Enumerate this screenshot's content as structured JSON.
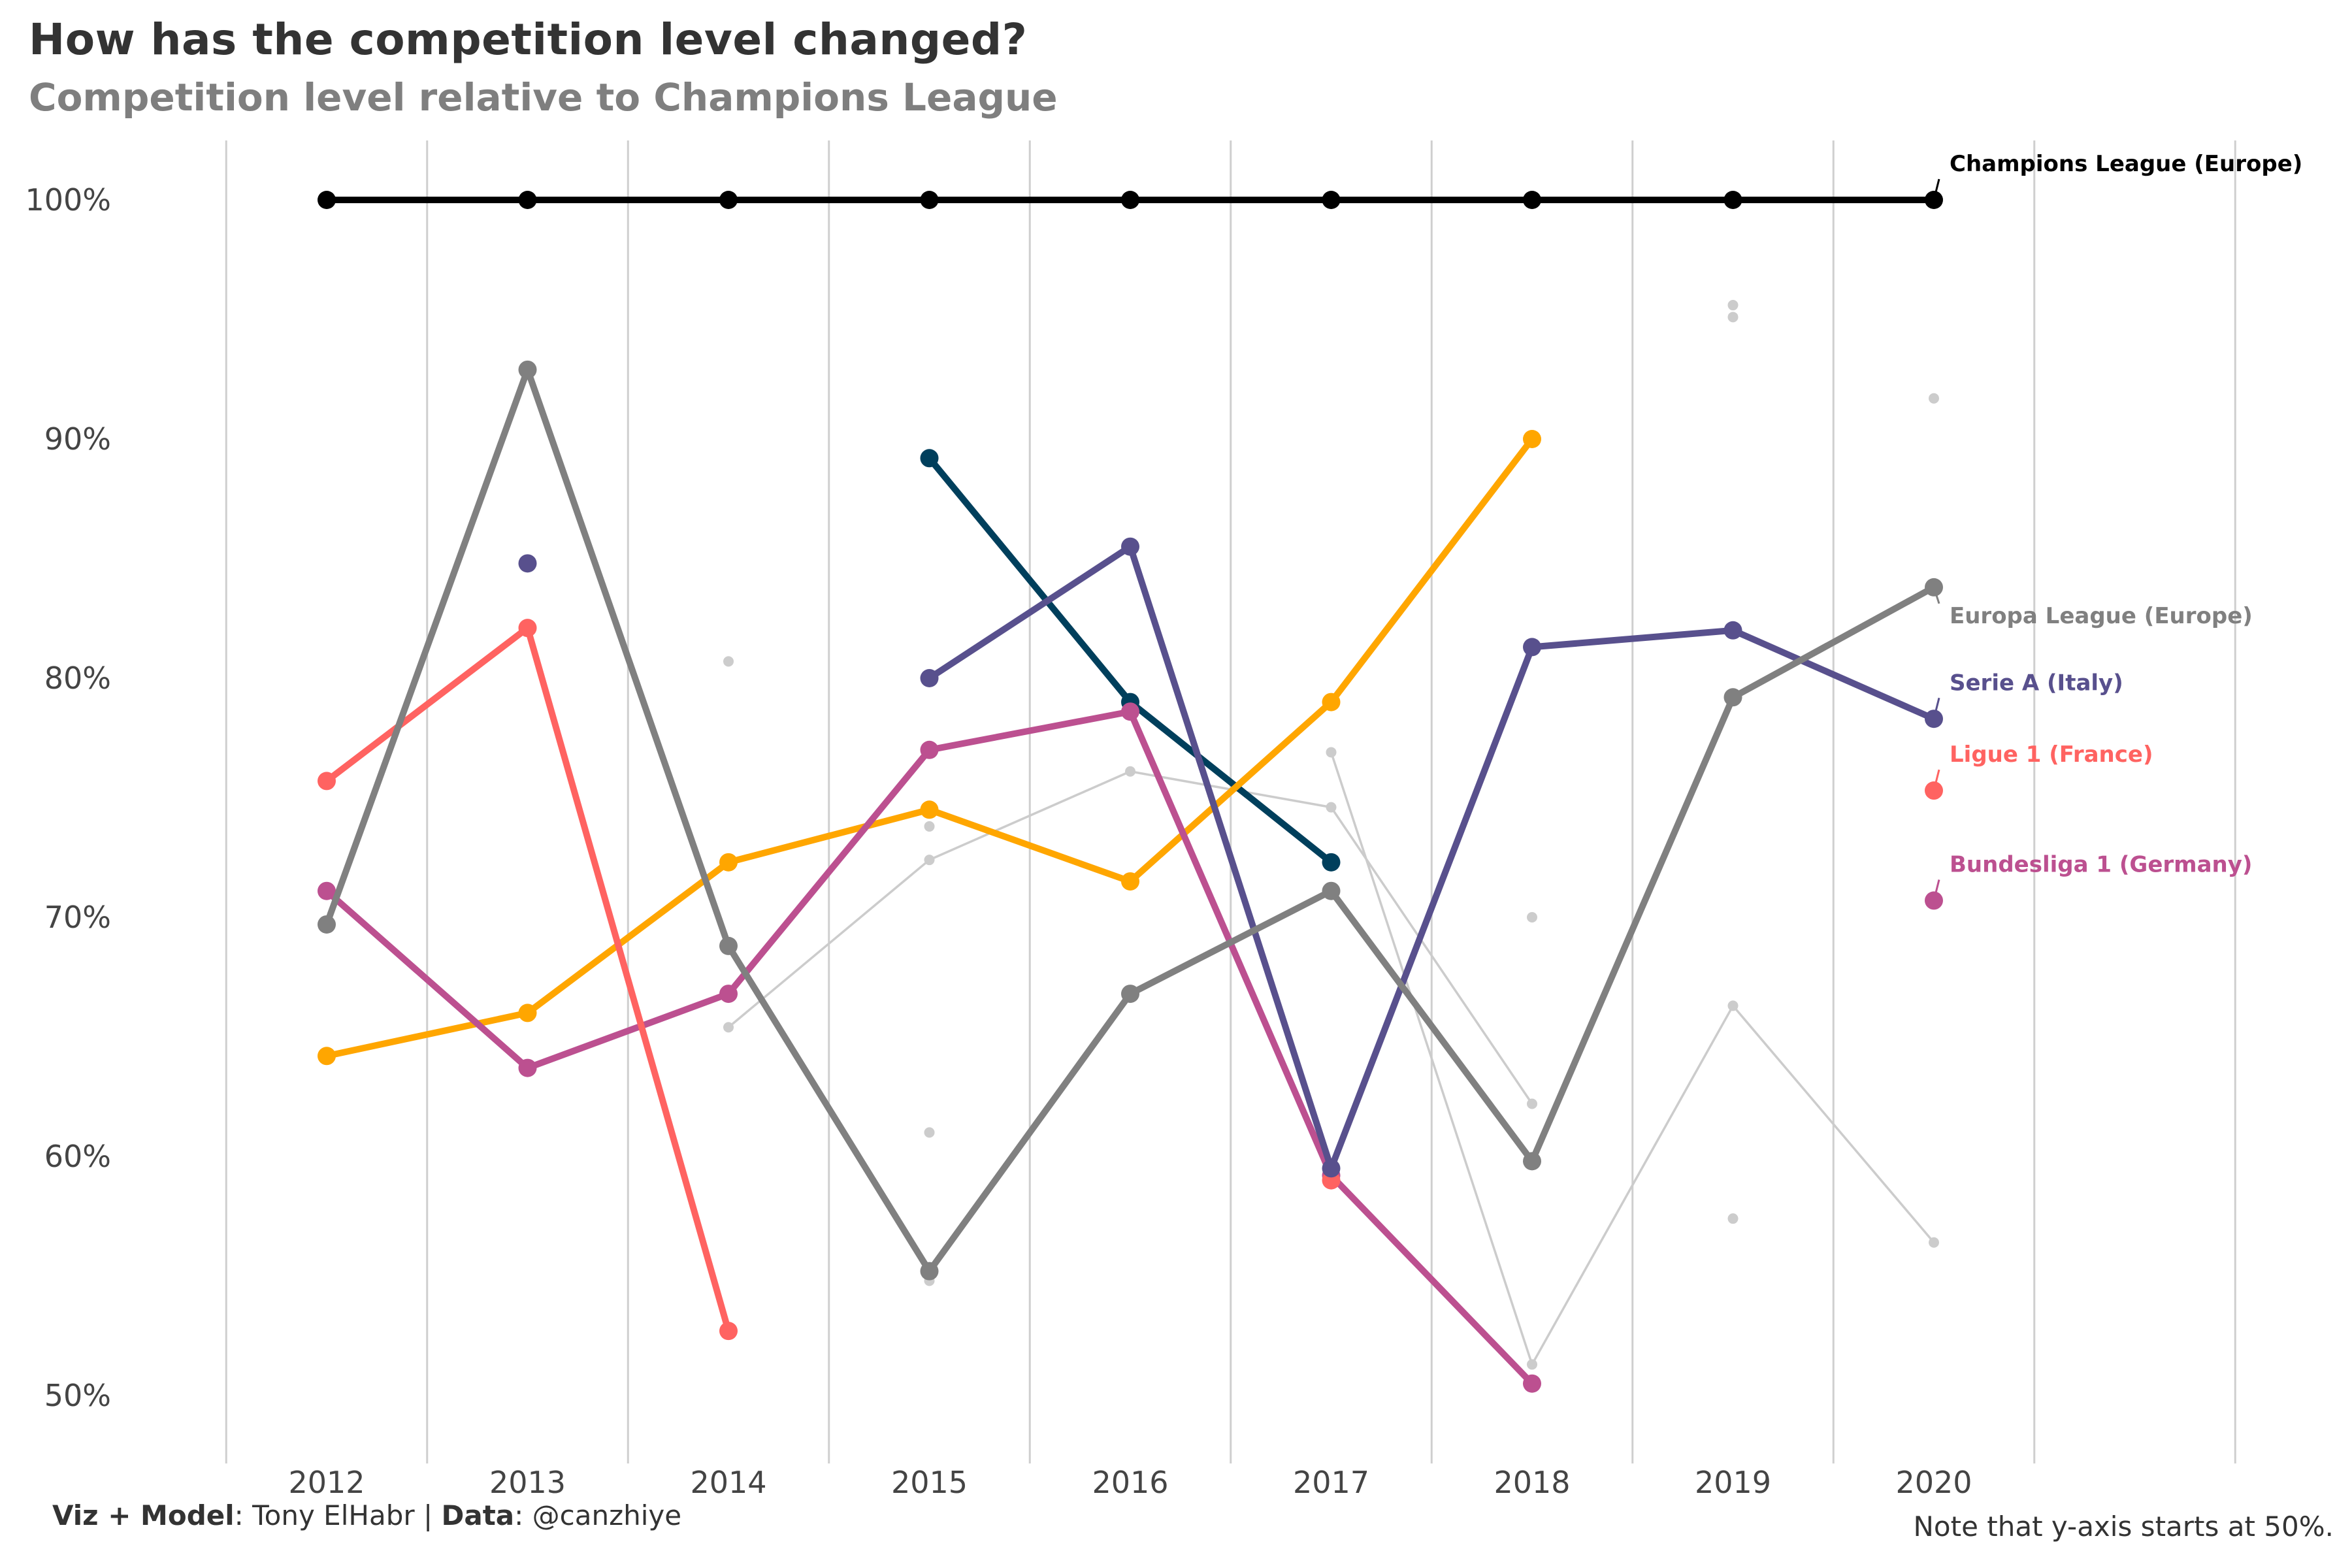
{
  "title": "How has the competition level changed?",
  "subtitle": "Competition level relative to Champions League",
  "caption_left": {
    "viz_label": "Viz + Model",
    "viz_value": ": Tony ElHabr | ",
    "data_label": "Data",
    "data_value": ": @canzhiye"
  },
  "caption_right": "Note that y-axis starts at 50%.",
  "chart_data": {
    "type": "line",
    "title": "How has the competition level changed?",
    "subtitle": "Competition level relative to Champions League",
    "xlabel": "",
    "ylabel": "",
    "x": [
      2012,
      2013,
      2014,
      2015,
      2016,
      2017,
      2018,
      2019,
      2020
    ],
    "x_tick_labels": [
      "2012",
      "2013",
      "2014",
      "2015",
      "2016",
      "2017",
      "2018",
      "2019",
      "2020"
    ],
    "y_ticks": [
      50,
      60,
      70,
      80,
      90,
      100
    ],
    "y_tick_labels": [
      "50%",
      "60%",
      "70%",
      "80%",
      "90%",
      "100%"
    ],
    "ylim": [
      47.5,
      102.5
    ],
    "xlim": [
      2011.5,
      2021.5
    ],
    "grid": "vertical",
    "legend": "direct labels at right",
    "series": [
      {
        "name": "Champions League (Europe)",
        "color": "#000000",
        "highlight": true,
        "points": [
          [
            2012,
            100
          ],
          [
            2013,
            100
          ],
          [
            2014,
            100
          ],
          [
            2015,
            100
          ],
          [
            2016,
            100
          ],
          [
            2017,
            100
          ],
          [
            2018,
            100
          ],
          [
            2019,
            100
          ],
          [
            2020,
            100
          ]
        ]
      },
      {
        "name": "Europa League (Europe)",
        "color": "#808080",
        "highlight": true,
        "points": [
          [
            2012,
            69.7
          ],
          [
            2013,
            92.9
          ],
          [
            2014,
            68.8
          ],
          [
            2015,
            55.2
          ],
          [
            2016,
            66.8
          ],
          [
            2017,
            71.1
          ],
          [
            2018,
            59.8
          ],
          [
            2019,
            79.2
          ],
          [
            2020,
            83.8
          ]
        ]
      },
      {
        "name": "Serie A (Italy)",
        "color": "#58508d",
        "highlight": true,
        "points": [
          [
            2013,
            84.8
          ],
          [
            2015,
            80.0
          ],
          [
            2016,
            85.5
          ],
          [
            2017,
            59.5
          ],
          [
            2018,
            81.3
          ],
          [
            2019,
            82.0
          ],
          [
            2020,
            78.3
          ]
        ]
      },
      {
        "name": "Ligue 1 (France)",
        "color": "#ff6361",
        "highlight": true,
        "points": [
          [
            2012,
            75.7
          ],
          [
            2013,
            82.1
          ],
          [
            2014,
            52.7
          ],
          [
            2017,
            59.0
          ],
          [
            2020,
            75.3
          ]
        ]
      },
      {
        "name": "Bundesliga 1 (Germany)",
        "color": "#bc5090",
        "highlight": true,
        "points": [
          [
            2012,
            71.1
          ],
          [
            2013,
            63.7
          ],
          [
            2014,
            66.8
          ],
          [
            2015,
            77.0
          ],
          [
            2016,
            78.6
          ],
          [
            2017,
            59.2
          ],
          [
            2018,
            50.5
          ],
          [
            2020,
            70.7
          ]
        ]
      },
      {
        "name": "",
        "color": "#ffa600",
        "highlight": true,
        "points": [
          [
            2012,
            64.2
          ],
          [
            2013,
            66.0
          ],
          [
            2014,
            72.3
          ],
          [
            2015,
            74.5
          ],
          [
            2016,
            71.5
          ],
          [
            2017,
            79.0
          ],
          [
            2018,
            90.0
          ]
        ]
      },
      {
        "name": "",
        "color": "#003f5c",
        "highlight": true,
        "points": [
          [
            2015,
            89.2
          ],
          [
            2016,
            79.0
          ],
          [
            2017,
            72.3
          ]
        ]
      },
      {
        "name": "",
        "color": "#cccccc",
        "highlight": false,
        "points": [
          [
            2014,
            65.4
          ],
          [
            2015,
            72.4
          ],
          [
            2016,
            76.1
          ],
          [
            2017,
            74.6
          ],
          [
            2018,
            62.2
          ]
        ]
      },
      {
        "name": "",
        "color": "#cccccc",
        "highlight": false,
        "points": [
          [
            2017,
            76.9
          ],
          [
            2018,
            51.3
          ],
          [
            2019,
            66.3
          ],
          [
            2020,
            56.4
          ]
        ]
      },
      {
        "name": "",
        "color": "#cccccc",
        "highlight": false,
        "points": [
          [
            2015,
            73.8
          ]
        ]
      },
      {
        "name": "",
        "color": "#cccccc",
        "highlight": false,
        "points": [
          [
            2015,
            54.8
          ]
        ]
      },
      {
        "name": "",
        "color": "#cccccc",
        "highlight": false,
        "points": [
          [
            2014,
            80.7
          ]
        ]
      },
      {
        "name": "",
        "color": "#cccccc",
        "highlight": false,
        "points": [
          [
            2015,
            61.0
          ]
        ]
      },
      {
        "name": "",
        "color": "#cccccc",
        "highlight": false,
        "points": [
          [
            2018,
            70.0
          ]
        ]
      },
      {
        "name": "",
        "color": "#cccccc",
        "highlight": false,
        "points": [
          [
            2019,
            95.6
          ]
        ]
      },
      {
        "name": "",
        "color": "#cccccc",
        "highlight": false,
        "points": [
          [
            2019,
            95.1
          ]
        ]
      },
      {
        "name": "",
        "color": "#cccccc",
        "highlight": false,
        "points": [
          [
            2019,
            57.4
          ]
        ]
      },
      {
        "name": "",
        "color": "#cccccc",
        "highlight": false,
        "points": [
          [
            2020,
            91.7
          ]
        ]
      }
    ],
    "labels": [
      {
        "text": "Champions League (Europe)",
        "color": "#000000",
        "x": 2020,
        "y": 100,
        "y_text": 101.2
      },
      {
        "text": "Europa League (Europe)",
        "color": "#808080",
        "x": 2020,
        "y": 83.8,
        "y_text": 82.3
      },
      {
        "text": "Serie A (Italy)",
        "color": "#58508d",
        "x": 2020,
        "y": 78.3,
        "y_text": 79.5
      },
      {
        "text": "Ligue 1 (France)",
        "color": "#ff6361",
        "x": 2020,
        "y": 75.3,
        "y_text": 76.5
      },
      {
        "text": "Bundesliga 1 (Germany)",
        "color": "#bc5090",
        "x": 2020,
        "y": 70.7,
        "y_text": 71.9
      }
    ]
  }
}
